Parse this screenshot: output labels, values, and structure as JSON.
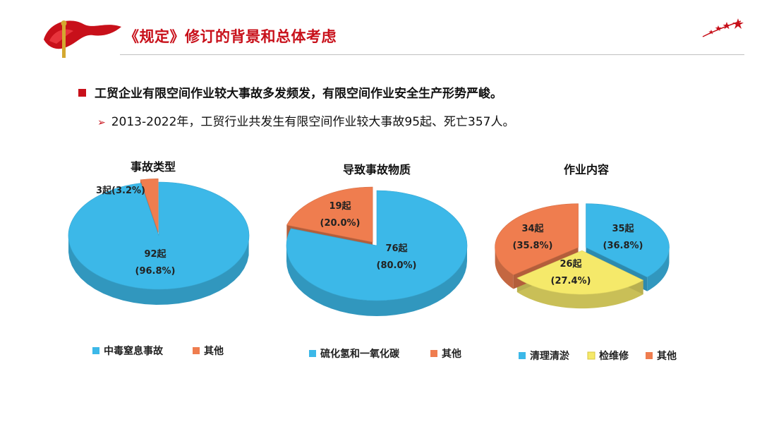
{
  "header": {
    "title": "《规定》修订的背景和总体考虑"
  },
  "bullets": {
    "main": "工贸企业有限空间作业较大事故多发频发，有限空间作业安全生产形势严峻。",
    "sub": "2013-2022年，工贸行业共发生有限空间作业较大事故95起、死亡357人。"
  },
  "colors": {
    "brand_red": "#c8101a",
    "blue": "#3cb8e8",
    "orange": "#ef7d4f",
    "yellow": "#f5e96a"
  },
  "chart_data": [
    {
      "type": "pie",
      "title": "事故类型",
      "series": [
        {
          "name": "中毒窒息事故",
          "value": 92,
          "label_count": "92起",
          "label_pct": "(96.8%)"
        },
        {
          "name": "其他",
          "value": 3,
          "label_count": "3起(3.2%)",
          "label_pct": ""
        }
      ]
    },
    {
      "type": "pie",
      "title": "导致事故物质",
      "series": [
        {
          "name": "硫化氢和一氧化碳",
          "value": 76,
          "label_count": "76起",
          "label_pct": "(80.0%)"
        },
        {
          "name": "其他",
          "value": 19,
          "label_count": "19起",
          "label_pct": "(20.0%)"
        }
      ]
    },
    {
      "type": "pie",
      "title": "作业内容",
      "series": [
        {
          "name": "清理清淤",
          "value": 35,
          "label_count": "35起",
          "label_pct": "(36.8%)"
        },
        {
          "name": "检维修",
          "value": 26,
          "label_count": "26起",
          "label_pct": "(27.4%)"
        },
        {
          "name": "其他",
          "value": 34,
          "label_count": "34起",
          "label_pct": "(35.8%)"
        }
      ]
    }
  ]
}
